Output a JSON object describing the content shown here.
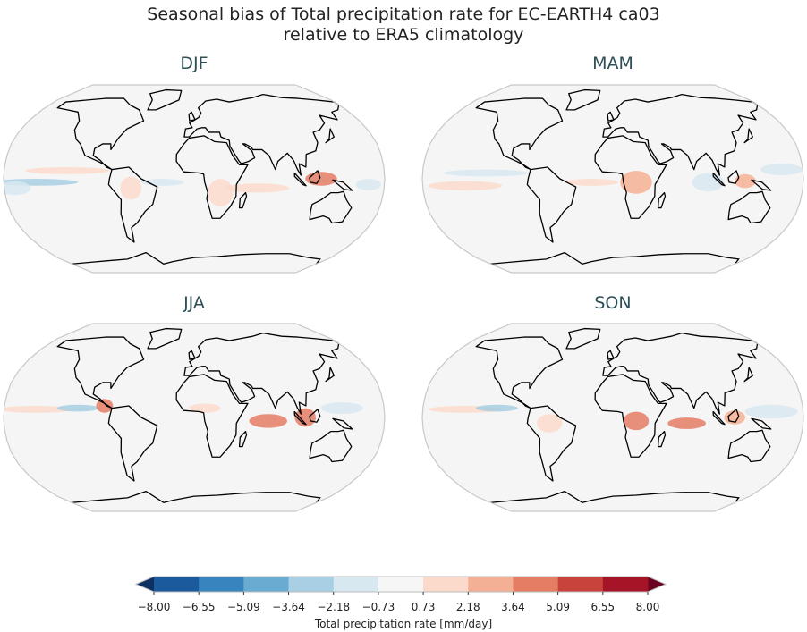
{
  "title_line1": "Seasonal bias of Total precipitation rate for EC-EARTH4 ca03",
  "title_line2": "relative to ERA5 climatology",
  "panels": [
    {
      "label": "DJF",
      "bias_regions": [
        {
          "lon": -150,
          "lat": -3,
          "rlon": 40,
          "rlat": 3,
          "value": -3
        },
        {
          "lon": -170,
          "lat": -8,
          "rlon": 15,
          "rlat": 6,
          "value": -2
        },
        {
          "lon": -120,
          "lat": 7,
          "rlon": 40,
          "rlat": 3,
          "value": 2
        },
        {
          "lon": -30,
          "lat": -3,
          "rlon": 20,
          "rlat": 3,
          "value": -2
        },
        {
          "lon": -60,
          "lat": -8,
          "rlon": 10,
          "rlat": 10,
          "value": 2
        },
        {
          "lon": 25,
          "lat": -12,
          "rlon": 12,
          "rlat": 12,
          "value": 2
        },
        {
          "lon": 60,
          "lat": -8,
          "rlon": 30,
          "rlat": 4,
          "value": 2
        },
        {
          "lon": 120,
          "lat": 0,
          "rlon": 15,
          "rlat": 6,
          "value": 4
        },
        {
          "lon": 165,
          "lat": -5,
          "rlon": 12,
          "rlat": 5,
          "value": -2
        }
      ]
    },
    {
      "label": "MAM",
      "bias_regions": [
        {
          "lon": -140,
          "lat": -6,
          "rlon": 35,
          "rlat": 4,
          "value": 2
        },
        {
          "lon": -120,
          "lat": 5,
          "rlon": 40,
          "rlat": 3,
          "value": -2
        },
        {
          "lon": -20,
          "lat": -3,
          "rlon": 25,
          "rlat": 3,
          "value": 2
        },
        {
          "lon": 22,
          "lat": -3,
          "rlon": 15,
          "rlat": 10,
          "value": 3
        },
        {
          "lon": 90,
          "lat": -3,
          "rlon": 15,
          "rlat": 8,
          "value": -2
        },
        {
          "lon": 125,
          "lat": -2,
          "rlon": 10,
          "rlat": 6,
          "value": 3
        },
        {
          "lon": 160,
          "lat": 8,
          "rlon": 20,
          "rlat": 5,
          "value": -2
        }
      ]
    },
    {
      "label": "JJA",
      "bias_regions": [
        {
          "lon": -150,
          "lat": 7,
          "rlon": 35,
          "rlat": 3,
          "value": 2
        },
        {
          "lon": -110,
          "lat": 8,
          "rlon": 20,
          "rlat": 3,
          "value": -3
        },
        {
          "lon": -85,
          "lat": 10,
          "rlon": 8,
          "rlat": 6,
          "value": 4
        },
        {
          "lon": 10,
          "lat": 8,
          "rlon": 15,
          "rlat": 4,
          "value": 2
        },
        {
          "lon": 70,
          "lat": -3,
          "rlon": 18,
          "rlat": 6,
          "value": 4
        },
        {
          "lon": 105,
          "lat": 0,
          "rlon": 10,
          "rlat": 8,
          "value": 5
        },
        {
          "lon": 140,
          "lat": 8,
          "rlon": 20,
          "rlat": 5,
          "value": -2
        }
      ]
    },
    {
      "label": "SON",
      "bias_regions": [
        {
          "lon": -140,
          "lat": 7,
          "rlon": 35,
          "rlat": 3,
          "value": 2
        },
        {
          "lon": -110,
          "lat": 8,
          "rlon": 20,
          "rlat": 3,
          "value": -3
        },
        {
          "lon": -60,
          "lat": -5,
          "rlon": 12,
          "rlat": 8,
          "value": 2
        },
        {
          "lon": 22,
          "lat": -3,
          "rlon": 12,
          "rlat": 8,
          "value": 4
        },
        {
          "lon": 70,
          "lat": -5,
          "rlon": 18,
          "rlat": 5,
          "value": 4
        },
        {
          "lon": 115,
          "lat": 0,
          "rlon": 10,
          "rlat": 6,
          "value": 3
        },
        {
          "lon": 150,
          "lat": 5,
          "rlon": 25,
          "rlat": 6,
          "value": -2
        }
      ]
    }
  ],
  "colorbar": {
    "label": "Total precipitation rate [mm/day]",
    "ticks": [
      "−8.00",
      "−6.55",
      "−5.09",
      "−3.64",
      "−2.18",
      "−0.73",
      "0.73",
      "2.18",
      "3.64",
      "5.09",
      "6.55",
      "8.00"
    ],
    "bounds": [
      -8.0,
      -6.55,
      -5.09,
      -3.64,
      -2.18,
      -0.73,
      0.73,
      2.18,
      3.64,
      5.09,
      6.55,
      8.0
    ],
    "colors": [
      "#1c5a9e",
      "#3884be",
      "#6aabd1",
      "#a8cfe3",
      "#d8e8f0",
      "#f6f6f6",
      "#fbdacb",
      "#f4b094",
      "#e47d64",
      "#c9433d",
      "#a51527"
    ],
    "under_color": "#0d3060",
    "over_color": "#6a0220",
    "extend": "both"
  },
  "map_background": "#f5f5f5",
  "coastline_color": "#000000"
}
